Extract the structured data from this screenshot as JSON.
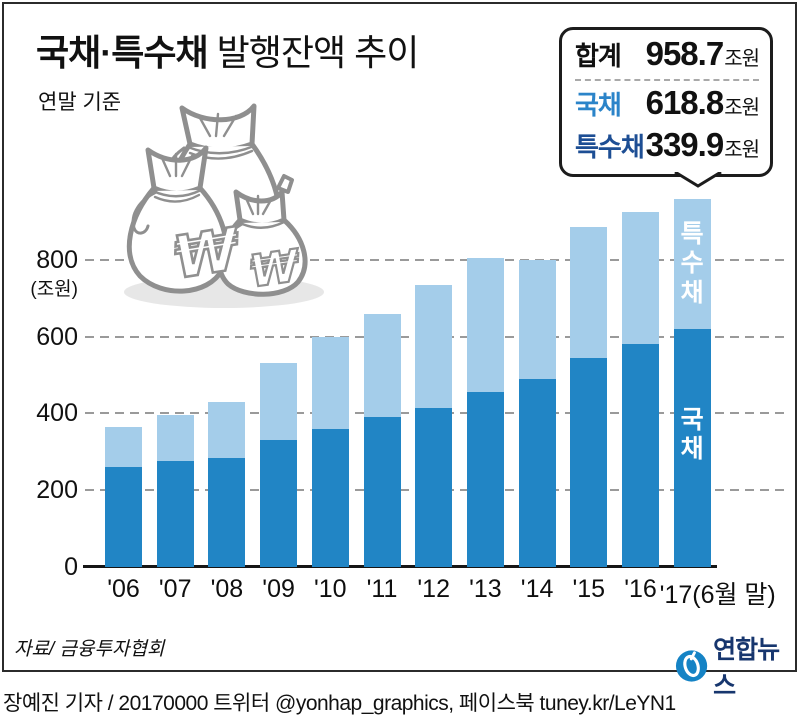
{
  "title": {
    "bold": "국채·특수채",
    "regular": " 발행잔액 추이"
  },
  "subtitle": "연말 기준",
  "callout": {
    "total": {
      "label": "합계",
      "value": "958.7",
      "unit": "조원"
    },
    "gov": {
      "label": "국채",
      "value": "618.8",
      "unit": "조원"
    },
    "special": {
      "label": "특수채",
      "value": "339.9",
      "unit": "조원"
    },
    "colors": {
      "total_label": "#111111",
      "gov_label": "#2b84c9",
      "special_label": "#1d4e94"
    }
  },
  "chart_data": {
    "type": "bar",
    "stacked": true,
    "title": "국채·특수채 발행잔액 추이",
    "categories": [
      "'06",
      "'07",
      "'08",
      "'09",
      "'10",
      "'11",
      "'12",
      "'13",
      "'14",
      "'15",
      "'16",
      "'17(6월 말)"
    ],
    "series": [
      {
        "name": "국채",
        "color": "#2185c5",
        "values": [
          260,
          275,
          285,
          330,
          360,
          390,
          415,
          455,
          490,
          545,
          580,
          618.8
        ]
      },
      {
        "name": "특수채",
        "color": "#a4cdea",
        "values": [
          105,
          120,
          145,
          200,
          240,
          270,
          320,
          350,
          310,
          340,
          345,
          339.9
        ]
      }
    ],
    "ylabel": "(조원)",
    "yticks": [
      0,
      200,
      400,
      600,
      800
    ],
    "ylim": [
      0,
      1000
    ],
    "grid": "horizontal-dashed",
    "legend_position": "callout-top-right",
    "in_bar_labels": {
      "top": "특수채",
      "bottom": "국채"
    },
    "unit": "조원"
  },
  "source": "자료/ 금융투자협회",
  "logo_text": "연합뉴스",
  "footer": "장예진 기자 / 20170000 트위터 @yonhap_graphics, 페이스북 tuney.kr/LeYN1"
}
